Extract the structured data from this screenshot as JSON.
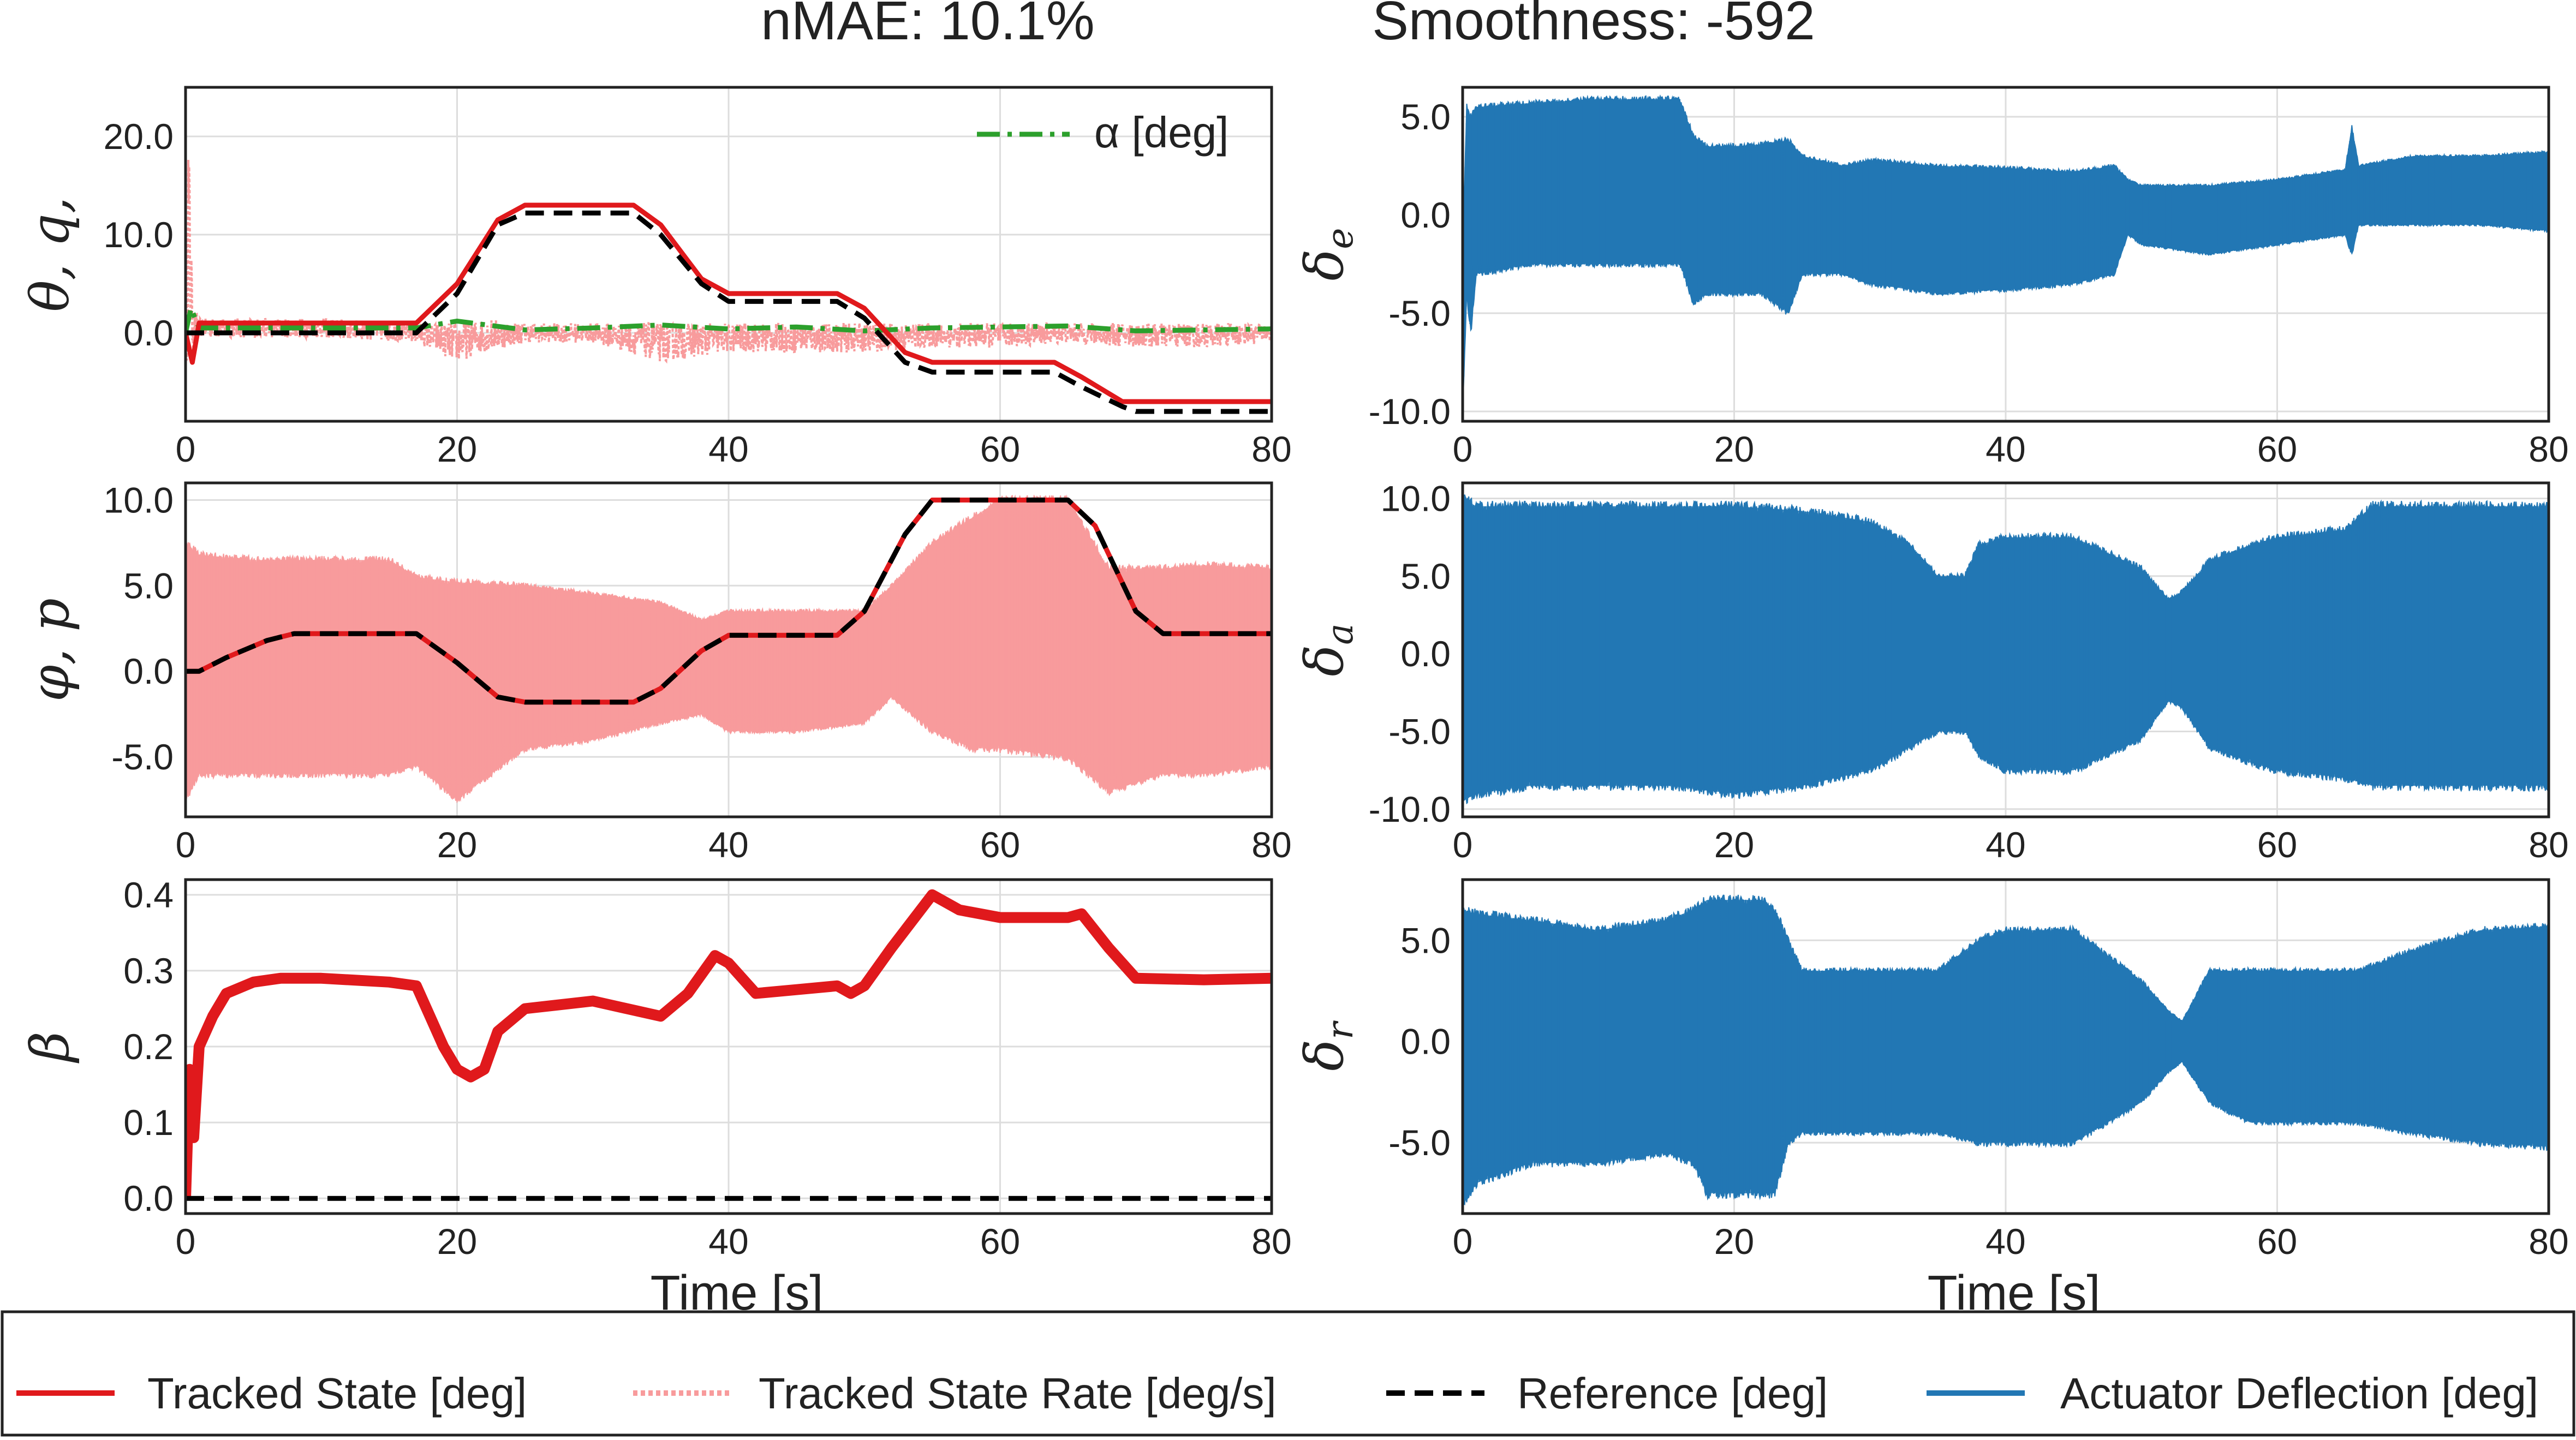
{
  "title": {
    "nmae": "nMAE: 10.1%",
    "smoothness": "Smoothness: -592"
  },
  "colors": {
    "tracked": "#e0191c",
    "rate": "#f89b9c",
    "reference": "#000000",
    "actuator": "#2277b4",
    "alpha": "#2ca02c",
    "grid": "#dddddd"
  },
  "legend": {
    "items": [
      {
        "label": "Tracked State [deg]",
        "style": "solid",
        "color": "#e0191c"
      },
      {
        "label": "Tracked State Rate [deg/s]",
        "style": "dotted",
        "color": "#f89b9c"
      },
      {
        "label": "Reference [deg]",
        "style": "dashed",
        "color": "#000000"
      },
      {
        "label": "Actuator Deflection [deg]",
        "style": "solid",
        "color": "#2277b4"
      }
    ]
  },
  "xlabel_left": "Time [s]",
  "xlabel_right": "Time [s]",
  "chart_data": [
    {
      "id": "theta",
      "type": "line",
      "ylabel": "θ, q,",
      "xlim": [
        0,
        80
      ],
      "ylim": [
        -9,
        25
      ],
      "xticks": [
        "0",
        "20",
        "40",
        "60",
        "80"
      ],
      "yticks": [
        "0.0",
        "10.0",
        "20.0"
      ],
      "ytick_values": [
        0,
        10,
        20
      ],
      "grid": true,
      "inset_legend": {
        "label": "α [deg]",
        "placement": "top-right"
      },
      "series": [
        {
          "name": "Tracked State [deg]",
          "kind": "tracked",
          "x": [
            0,
            0.5,
            1,
            17,
            20,
            23,
            25,
            33,
            35,
            38,
            40,
            48,
            50,
            53,
            55,
            64,
            66,
            69,
            70,
            80
          ],
          "y": [
            0,
            -3,
            1,
            1,
            5,
            11.5,
            13,
            13,
            11,
            5.5,
            4,
            4,
            2.5,
            -2,
            -3,
            -3,
            -4.5,
            -7,
            -7,
            -7
          ]
        },
        {
          "name": "Reference [deg]",
          "kind": "reference",
          "x": [
            0,
            17,
            20,
            23,
            25,
            33,
            35,
            38,
            40,
            48,
            50,
            53,
            55,
            64,
            66,
            69,
            70,
            80
          ],
          "y": [
            0,
            0,
            4,
            11,
            12.2,
            12.2,
            10,
            5,
            3.2,
            3.2,
            1.5,
            -3,
            -4,
            -4,
            -5.5,
            -7.5,
            -8,
            -8
          ]
        },
        {
          "name": "α [deg]",
          "kind": "alpha",
          "x": [
            0,
            0.4,
            1,
            5,
            17,
            20,
            25,
            30,
            35,
            40,
            45,
            50,
            55,
            60,
            65,
            70,
            75,
            80
          ],
          "y": [
            0,
            2.5,
            0.5,
            0.5,
            0.5,
            1.2,
            0.3,
            0.5,
            0.8,
            0.4,
            0.6,
            0.2,
            0.5,
            0.6,
            0.7,
            0.2,
            0.3,
            0.4
          ]
        },
        {
          "name": "Tracked State Rate [deg/s]",
          "kind": "rate_noise",
          "x": [
            0,
            0.2,
            0.5,
            1,
            5,
            10,
            17,
            20,
            22,
            25,
            30,
            35,
            40,
            45,
            50,
            55,
            60,
            65,
            70,
            75,
            80
          ],
          "y_low": [
            -5,
            0,
            -2,
            -0.5,
            -0.5,
            -0.5,
            -1,
            -3,
            -2,
            -1,
            -1,
            -3,
            -2,
            -2,
            -2,
            -1.5,
            -1.5,
            -1,
            -1.5,
            -1.5,
            -1
          ],
          "y_high": [
            5,
            23,
            3,
            1.5,
            1.5,
            1.5,
            1,
            1,
            1.5,
            1,
            1,
            1,
            1,
            1,
            1,
            1,
            1,
            1,
            1,
            1,
            1
          ]
        }
      ]
    },
    {
      "id": "phi",
      "type": "line",
      "ylabel": "φ, p",
      "xlim": [
        0,
        80
      ],
      "ylim": [
        -8.5,
        11
      ],
      "xticks": [
        "0",
        "20",
        "40",
        "60",
        "80"
      ],
      "yticks": [
        "-5.0",
        "0.0",
        "5.0",
        "10.0"
      ],
      "ytick_values": [
        -5,
        0,
        5,
        10
      ],
      "grid": true,
      "series": [
        {
          "name": "Tracked State [deg]",
          "kind": "tracked",
          "x": [
            0,
            1,
            3,
            6,
            8,
            17,
            20,
            23,
            25,
            33,
            35,
            38,
            40,
            48,
            50,
            53,
            55,
            65,
            67,
            70,
            72,
            80
          ],
          "y": [
            0,
            0,
            0.8,
            1.8,
            2.2,
            2.2,
            0.5,
            -1.5,
            -1.8,
            -1.8,
            -1,
            1.2,
            2.1,
            2.1,
            3.5,
            8,
            10,
            10,
            8.5,
            3.5,
            2.2,
            2.2
          ]
        },
        {
          "name": "Reference [deg]",
          "kind": "reference",
          "x": [
            0,
            1,
            3,
            6,
            8,
            17,
            20,
            23,
            25,
            33,
            35,
            38,
            40,
            48,
            50,
            53,
            55,
            65,
            67,
            70,
            72,
            80
          ],
          "y": [
            0,
            0,
            0.8,
            1.8,
            2.2,
            2.2,
            0.5,
            -1.5,
            -1.8,
            -1.8,
            -1,
            1.2,
            2.1,
            2.1,
            3.5,
            8,
            10,
            10,
            8.5,
            3.5,
            2.2,
            2.2
          ]
        },
        {
          "name": "Tracked State Rate [deg/s]",
          "kind": "rate_band",
          "x": [
            0,
            1,
            5,
            10,
            15,
            17,
            20,
            25,
            30,
            35,
            38,
            40,
            45,
            50,
            52,
            55,
            58,
            60,
            65,
            68,
            70,
            72,
            75,
            80
          ],
          "y_low": [
            -7.5,
            -6,
            -6,
            -6,
            -6,
            -5.5,
            -7.5,
            -4.5,
            -4,
            -3,
            -2.5,
            -3.5,
            -3.5,
            -3,
            -1.5,
            -3.5,
            -4.5,
            -4.5,
            -5,
            -7,
            -6.5,
            -6,
            -6,
            -5.5
          ],
          "y_high": [
            7.5,
            6.8,
            6.5,
            6.5,
            6.5,
            5.5,
            5.2,
            5,
            4.5,
            4,
            3,
            3.5,
            3.5,
            3.5,
            5,
            7.5,
            9,
            10,
            10,
            6,
            6,
            6,
            6.2,
            6
          ]
        }
      ]
    },
    {
      "id": "beta",
      "type": "line",
      "ylabel": "β",
      "xlim": [
        0,
        80
      ],
      "ylim": [
        -0.02,
        0.42
      ],
      "xticks": [
        "0",
        "20",
        "40",
        "60",
        "80"
      ],
      "yticks": [
        "0.0",
        "0.1",
        "0.2",
        "0.3",
        "0.4"
      ],
      "ytick_values": [
        0,
        0.1,
        0.2,
        0.3,
        0.4
      ],
      "grid": true,
      "series": [
        {
          "name": "Tracked State [deg]",
          "kind": "tracked",
          "x": [
            0,
            0.3,
            0.6,
            1,
            2,
            3,
            5,
            7,
            10,
            15,
            17,
            18,
            19,
            20,
            21,
            22,
            23,
            25,
            30,
            35,
            37,
            39,
            40,
            42,
            45,
            48,
            49,
            50,
            52,
            55,
            57,
            60,
            65,
            66,
            68,
            70,
            75,
            80
          ],
          "y": [
            0,
            0.17,
            0.08,
            0.2,
            0.24,
            0.27,
            0.285,
            0.29,
            0.29,
            0.285,
            0.28,
            0.24,
            0.2,
            0.17,
            0.16,
            0.17,
            0.22,
            0.25,
            0.26,
            0.24,
            0.27,
            0.32,
            0.31,
            0.27,
            0.275,
            0.28,
            0.27,
            0.28,
            0.33,
            0.4,
            0.38,
            0.37,
            0.37,
            0.375,
            0.33,
            0.29,
            0.288,
            0.29
          ]
        },
        {
          "name": "Reference [deg]",
          "kind": "reference",
          "x": [
            0,
            80
          ],
          "y": [
            0,
            0
          ]
        }
      ]
    },
    {
      "id": "delta_e",
      "type": "area",
      "ylabel": "δe",
      "xlim": [
        0,
        80
      ],
      "ylim": [
        -10.5,
        6.5
      ],
      "xticks": [
        "0",
        "20",
        "40",
        "60",
        "80"
      ],
      "yticks": [
        "-10.0",
        "-5.0",
        "0.0",
        "5.0"
      ],
      "ytick_values": [
        -10,
        -5,
        0,
        5
      ],
      "grid": true,
      "series": [
        {
          "name": "Actuator Deflection [deg]",
          "kind": "actuator",
          "x": [
            0,
            0.3,
            0.6,
            1,
            5,
            10,
            16,
            17,
            18,
            20,
            22,
            24,
            25,
            28,
            30,
            35,
            40,
            45,
            48,
            49,
            50,
            55,
            60,
            65,
            65.5,
            66,
            70,
            75,
            80
          ],
          "y_low": [
            -10,
            -4,
            -6,
            -3,
            -2.5,
            -2.5,
            -2.5,
            -4.5,
            -4,
            -4,
            -4,
            -5,
            -3,
            -3,
            -3.5,
            -4,
            -3.8,
            -3.5,
            -3,
            -1,
            -1.5,
            -2,
            -1.5,
            -1,
            -2,
            -0.5,
            -0.5,
            -0.5,
            -0.8
          ],
          "y_high": [
            -2,
            5.5,
            5,
            5.5,
            5.7,
            5.9,
            5.9,
            4,
            3.5,
            3.5,
            3.6,
            3.8,
            3,
            2.5,
            2.8,
            2.5,
            2.4,
            2.2,
            2.5,
            1.8,
            1.5,
            1.5,
            1.8,
            2.3,
            4.5,
            2.5,
            3,
            3,
            3.2
          ]
        }
      ]
    },
    {
      "id": "delta_a",
      "type": "area",
      "ylabel": "δa",
      "xlim": [
        0,
        80
      ],
      "ylim": [
        -10.5,
        11
      ],
      "xticks": [
        "0",
        "20",
        "40",
        "60",
        "80"
      ],
      "yticks": [
        "-10.0",
        "-5.0",
        "0.0",
        "5.0",
        "10.0"
      ],
      "ytick_values": [
        -10,
        -5,
        0,
        5,
        10
      ],
      "grid": true,
      "series": [
        {
          "name": "Actuator Deflection [deg]",
          "kind": "actuator",
          "x": [
            0,
            1,
            5,
            10,
            15,
            20,
            25,
            30,
            33,
            35,
            37,
            38,
            40,
            45,
            50,
            52,
            53,
            55,
            58,
            60,
            65,
            67,
            70,
            75,
            80
          ],
          "y_low": [
            -9.5,
            -9,
            -8.5,
            -8.5,
            -8.5,
            -9,
            -8.5,
            -7.5,
            -6,
            -5,
            -5,
            -6.5,
            -7.5,
            -7.5,
            -5.5,
            -3,
            -3.5,
            -6,
            -7,
            -7.5,
            -8,
            -8.5,
            -8.5,
            -8.5,
            -8.5
          ],
          "y_high": [
            10,
            9.5,
            9.5,
            9.5,
            9.5,
            9.5,
            9.2,
            8.5,
            7,
            5,
            5,
            7,
            7.5,
            7.5,
            5.5,
            3.5,
            4,
            6,
            7,
            7.5,
            8,
            9.5,
            9.5,
            9.5,
            9.5
          ]
        }
      ]
    },
    {
      "id": "delta_r",
      "type": "area",
      "ylabel": "δr",
      "xlim": [
        0,
        80
      ],
      "ylim": [
        -8.5,
        8
      ],
      "xticks": [
        "0",
        "20",
        "40",
        "60",
        "80"
      ],
      "yticks": [
        "-5.0",
        "0.0",
        "5.0"
      ],
      "ytick_values": [
        -5,
        0,
        5
      ],
      "grid": true,
      "series": [
        {
          "name": "Actuator Deflection [deg]",
          "kind": "actuator",
          "x": [
            0,
            1,
            5,
            10,
            15,
            17,
            18,
            20,
            22,
            23,
            24,
            25,
            30,
            35,
            38,
            40,
            45,
            50,
            52,
            53,
            55,
            58,
            60,
            65,
            66,
            70,
            75,
            80
          ],
          "y_low": [
            -8,
            -7,
            -6,
            -6,
            -5.5,
            -6,
            -7.5,
            -7.5,
            -7.5,
            -7.5,
            -5,
            -4.5,
            -4.5,
            -4.5,
            -5,
            -5,
            -5,
            -3,
            -1.5,
            -1,
            -3,
            -4,
            -4,
            -4,
            -4,
            -4.5,
            -5,
            -5.2
          ],
          "y_high": [
            6.5,
            6.3,
            6,
            5.5,
            6,
            6.5,
            7,
            7,
            7,
            6.5,
            5,
            3.5,
            3.5,
            3.5,
            5,
            5.5,
            5.5,
            3,
            1.5,
            1,
            3.5,
            3.5,
            3.5,
            3.5,
            3.5,
            4.5,
            5.5,
            5.7
          ]
        }
      ]
    }
  ]
}
